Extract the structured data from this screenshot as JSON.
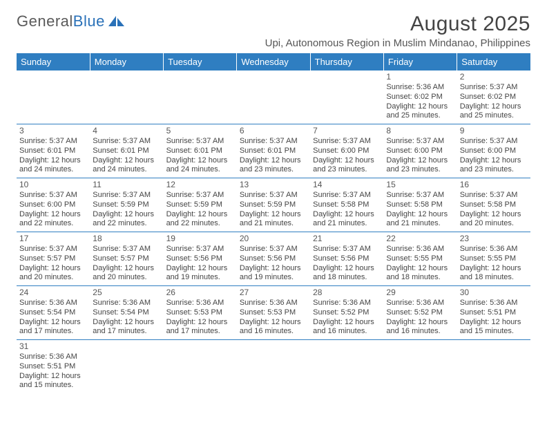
{
  "logo": {
    "text1": "General",
    "text2": "Blue"
  },
  "title": "August 2025",
  "location": "Upi, Autonomous Region in Muslim Mindanao, Philippines",
  "colors": {
    "header_bg": "#2f7ec1",
    "header_text": "#ffffff",
    "border": "#2f7ec1",
    "body_text": "#444444",
    "logo_gray": "#5a5a5a",
    "logo_blue": "#2a71b8"
  },
  "typography": {
    "title_fontsize": 30,
    "header_fontsize": 13,
    "cell_fontsize": 11
  },
  "day_headers": [
    "Sunday",
    "Monday",
    "Tuesday",
    "Wednesday",
    "Thursday",
    "Friday",
    "Saturday"
  ],
  "weeks": [
    [
      null,
      null,
      null,
      null,
      null,
      {
        "n": "1",
        "sr": "5:36 AM",
        "ss": "6:02 PM",
        "dh": "12",
        "dm": "25"
      },
      {
        "n": "2",
        "sr": "5:37 AM",
        "ss": "6:02 PM",
        "dh": "12",
        "dm": "25"
      }
    ],
    [
      {
        "n": "3",
        "sr": "5:37 AM",
        "ss": "6:01 PM",
        "dh": "12",
        "dm": "24"
      },
      {
        "n": "4",
        "sr": "5:37 AM",
        "ss": "6:01 PM",
        "dh": "12",
        "dm": "24"
      },
      {
        "n": "5",
        "sr": "5:37 AM",
        "ss": "6:01 PM",
        "dh": "12",
        "dm": "24"
      },
      {
        "n": "6",
        "sr": "5:37 AM",
        "ss": "6:01 PM",
        "dh": "12",
        "dm": "23"
      },
      {
        "n": "7",
        "sr": "5:37 AM",
        "ss": "6:00 PM",
        "dh": "12",
        "dm": "23"
      },
      {
        "n": "8",
        "sr": "5:37 AM",
        "ss": "6:00 PM",
        "dh": "12",
        "dm": "23"
      },
      {
        "n": "9",
        "sr": "5:37 AM",
        "ss": "6:00 PM",
        "dh": "12",
        "dm": "23"
      }
    ],
    [
      {
        "n": "10",
        "sr": "5:37 AM",
        "ss": "6:00 PM",
        "dh": "12",
        "dm": "22"
      },
      {
        "n": "11",
        "sr": "5:37 AM",
        "ss": "5:59 PM",
        "dh": "12",
        "dm": "22"
      },
      {
        "n": "12",
        "sr": "5:37 AM",
        "ss": "5:59 PM",
        "dh": "12",
        "dm": "22"
      },
      {
        "n": "13",
        "sr": "5:37 AM",
        "ss": "5:59 PM",
        "dh": "12",
        "dm": "21"
      },
      {
        "n": "14",
        "sr": "5:37 AM",
        "ss": "5:58 PM",
        "dh": "12",
        "dm": "21"
      },
      {
        "n": "15",
        "sr": "5:37 AM",
        "ss": "5:58 PM",
        "dh": "12",
        "dm": "21"
      },
      {
        "n": "16",
        "sr": "5:37 AM",
        "ss": "5:58 PM",
        "dh": "12",
        "dm": "20"
      }
    ],
    [
      {
        "n": "17",
        "sr": "5:37 AM",
        "ss": "5:57 PM",
        "dh": "12",
        "dm": "20"
      },
      {
        "n": "18",
        "sr": "5:37 AM",
        "ss": "5:57 PM",
        "dh": "12",
        "dm": "20"
      },
      {
        "n": "19",
        "sr": "5:37 AM",
        "ss": "5:56 PM",
        "dh": "12",
        "dm": "19"
      },
      {
        "n": "20",
        "sr": "5:37 AM",
        "ss": "5:56 PM",
        "dh": "12",
        "dm": "19"
      },
      {
        "n": "21",
        "sr": "5:37 AM",
        "ss": "5:56 PM",
        "dh": "12",
        "dm": "18"
      },
      {
        "n": "22",
        "sr": "5:36 AM",
        "ss": "5:55 PM",
        "dh": "12",
        "dm": "18"
      },
      {
        "n": "23",
        "sr": "5:36 AM",
        "ss": "5:55 PM",
        "dh": "12",
        "dm": "18"
      }
    ],
    [
      {
        "n": "24",
        "sr": "5:36 AM",
        "ss": "5:54 PM",
        "dh": "12",
        "dm": "17"
      },
      {
        "n": "25",
        "sr": "5:36 AM",
        "ss": "5:54 PM",
        "dh": "12",
        "dm": "17"
      },
      {
        "n": "26",
        "sr": "5:36 AM",
        "ss": "5:53 PM",
        "dh": "12",
        "dm": "17"
      },
      {
        "n": "27",
        "sr": "5:36 AM",
        "ss": "5:53 PM",
        "dh": "12",
        "dm": "16"
      },
      {
        "n": "28",
        "sr": "5:36 AM",
        "ss": "5:52 PM",
        "dh": "12",
        "dm": "16"
      },
      {
        "n": "29",
        "sr": "5:36 AM",
        "ss": "5:52 PM",
        "dh": "12",
        "dm": "16"
      },
      {
        "n": "30",
        "sr": "5:36 AM",
        "ss": "5:51 PM",
        "dh": "12",
        "dm": "15"
      }
    ],
    [
      {
        "n": "31",
        "sr": "5:36 AM",
        "ss": "5:51 PM",
        "dh": "12",
        "dm": "15"
      },
      null,
      null,
      null,
      null,
      null,
      null
    ]
  ],
  "labels": {
    "sunrise": "Sunrise: ",
    "sunset": "Sunset: ",
    "daylight": "Daylight: ",
    "hours": " hours",
    "and": "and ",
    "minutes": " minutes."
  }
}
